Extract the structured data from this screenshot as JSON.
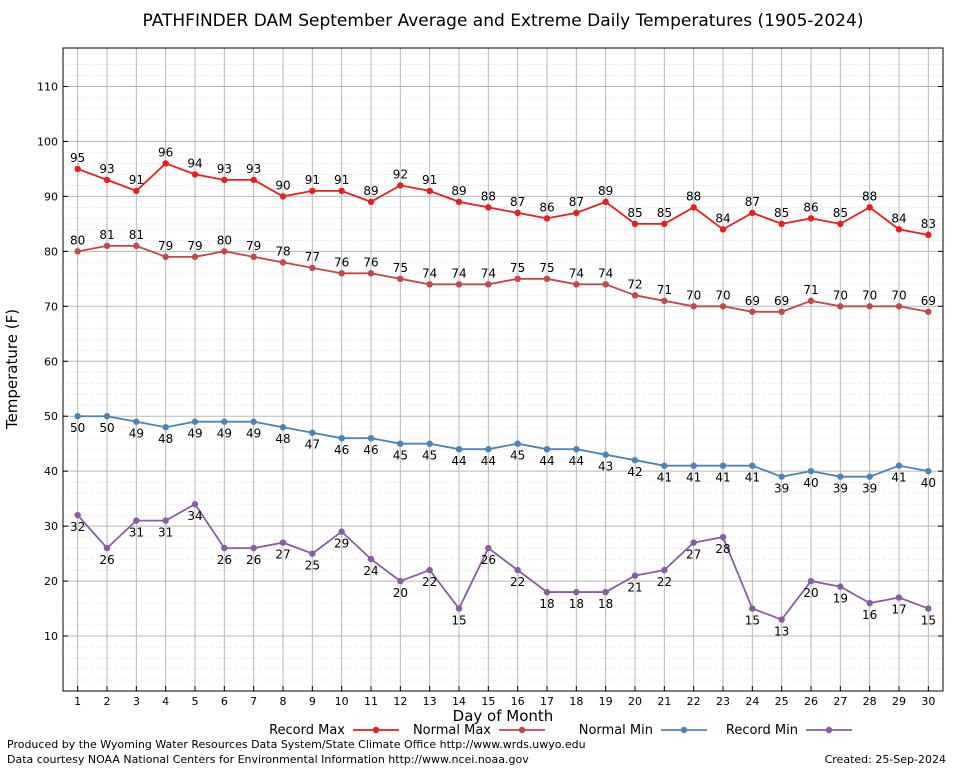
{
  "chart_data": {
    "type": "line",
    "title": "PATHFINDER DAM September Average and Extreme Daily Temperatures (1905-2024)",
    "xlabel": "Day of Month",
    "ylabel": "Temperature (F)",
    "x": [
      1,
      2,
      3,
      4,
      5,
      6,
      7,
      8,
      9,
      10,
      11,
      12,
      13,
      14,
      15,
      16,
      17,
      18,
      19,
      20,
      21,
      22,
      23,
      24,
      25,
      26,
      27,
      28,
      29,
      30
    ],
    "xlim": [
      0.5,
      30.5
    ],
    "ylim": [
      0,
      117
    ],
    "yticks": [
      10,
      20,
      30,
      40,
      50,
      60,
      70,
      80,
      90,
      100,
      110
    ],
    "grid": true,
    "legend_position": "bottom",
    "series": [
      {
        "name": "Record Max",
        "color": "#ee1c1c",
        "label_pos": "above",
        "values": [
          95,
          93,
          91,
          96,
          94,
          93,
          93,
          90,
          91,
          91,
          89,
          92,
          91,
          89,
          88,
          87,
          86,
          87,
          89,
          85,
          85,
          88,
          84,
          87,
          85,
          86,
          85,
          88,
          84,
          83
        ]
      },
      {
        "name": "Normal Max",
        "color": "#c84646",
        "label_pos": "above",
        "values": [
          80,
          81,
          81,
          79,
          79,
          80,
          79,
          78,
          77,
          76,
          76,
          75,
          74,
          74,
          74,
          75,
          75,
          74,
          74,
          72,
          71,
          70,
          70,
          69,
          69,
          71,
          70,
          70,
          70,
          69
        ]
      },
      {
        "name": "Normal Min",
        "color": "#4a84bd",
        "label_pos": "below",
        "values": [
          50,
          50,
          49,
          48,
          49,
          49,
          49,
          48,
          47,
          46,
          46,
          45,
          45,
          44,
          44,
          45,
          44,
          44,
          43,
          42,
          41,
          41,
          41,
          41,
          39,
          40,
          39,
          39,
          41,
          40
        ]
      },
      {
        "name": "Record Min",
        "color": "#8a5ca6",
        "label_pos": "below",
        "values": [
          32,
          26,
          31,
          31,
          34,
          26,
          26,
          27,
          25,
          29,
          24,
          20,
          22,
          15,
          26,
          22,
          18,
          18,
          18,
          21,
          22,
          27,
          28,
          15,
          13,
          20,
          19,
          16,
          17,
          15
        ]
      }
    ]
  },
  "footer": {
    "left_line1": "Produced by the Wyoming Water Resources Data System/State Climate Office http://www.wrds.uwyo.edu",
    "left_line2": "Data courtesy NOAA National Centers for Environmental Information http://www.ncei.noaa.gov",
    "created": "Created:  25-Sep-2024"
  }
}
